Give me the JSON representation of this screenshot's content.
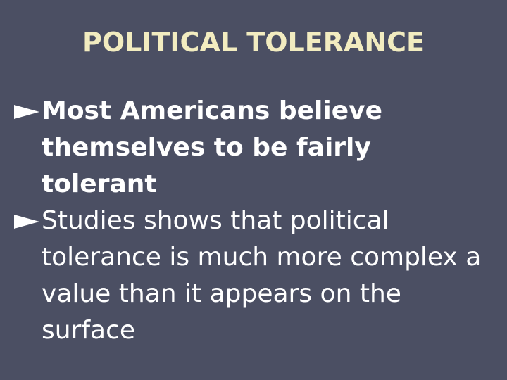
{
  "title": "POLITICAL TOLERANCE",
  "bullets": [
    {
      "text": "Most Americans believe themselves to be fairly tolerant"
    },
    {
      "text": "Studies shows that political tolerance is much more complex a value than it appears on the surface"
    }
  ]
}
